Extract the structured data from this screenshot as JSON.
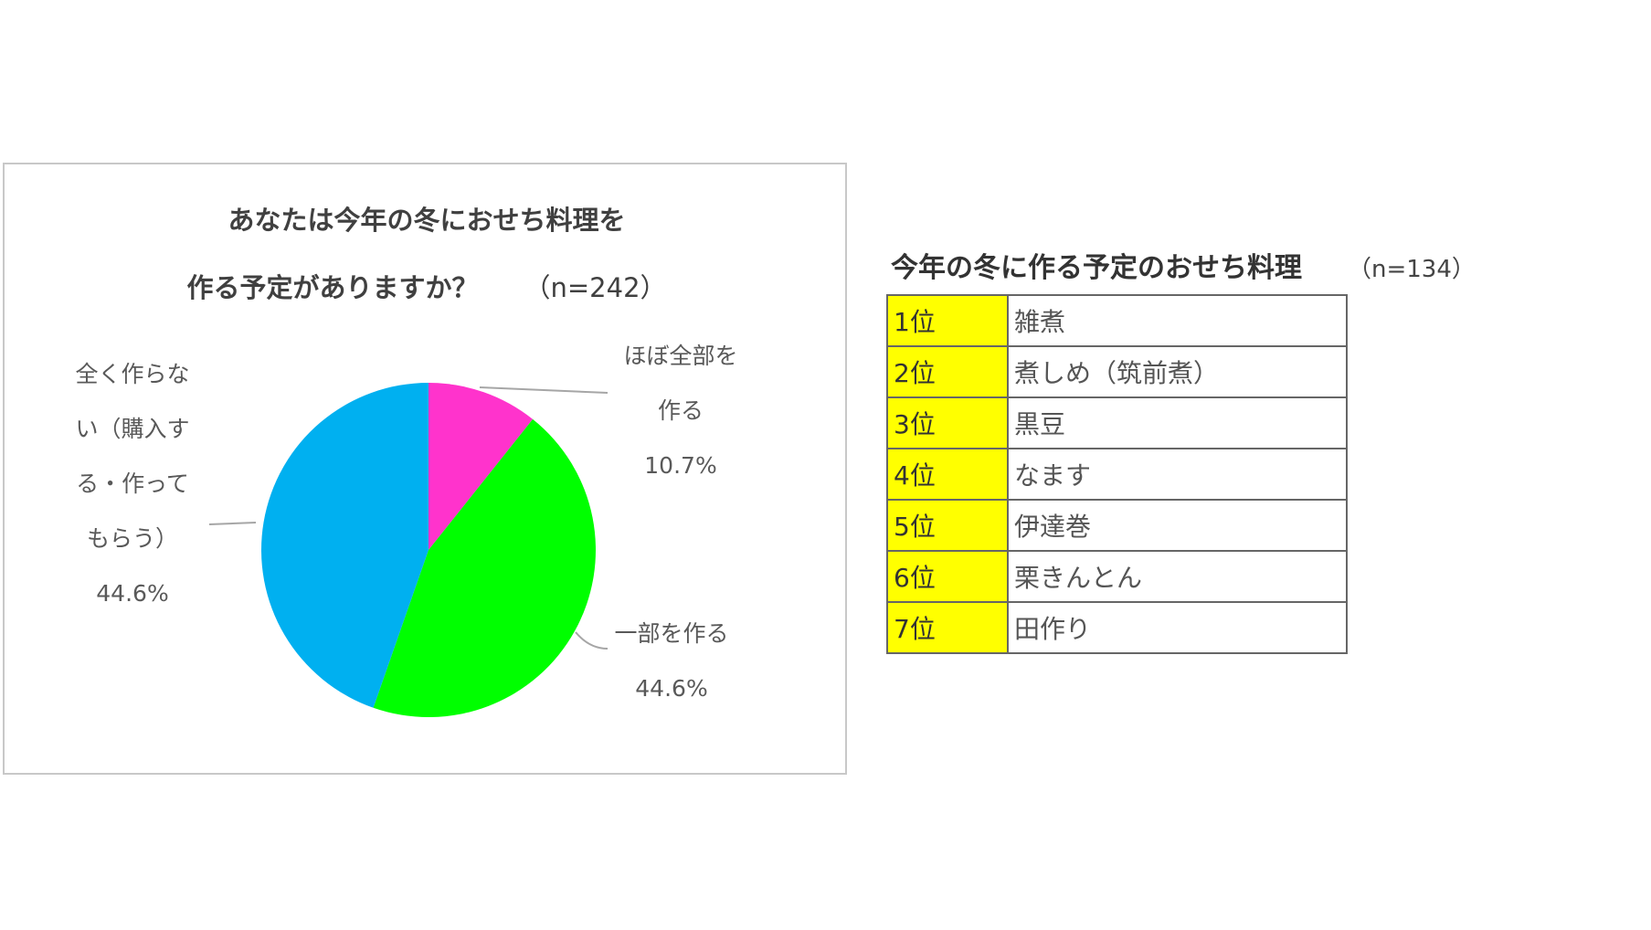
{
  "chart_data": {
    "type": "pie",
    "title_line1": "あなたは今年の冬におせち料理を",
    "title_line2": "作る予定がありますか？",
    "sample": "（n=242）",
    "slices": [
      {
        "label_lines": [
          "ほぼ全部を",
          "作る"
        ],
        "value": 10.7,
        "value_label": "10.7%",
        "color": "#ff33cc"
      },
      {
        "label_lines": [
          "一部を作る"
        ],
        "value": 44.6,
        "value_label": "44.6%",
        "color": "#00ff00"
      },
      {
        "label_lines": [
          "全く作らな",
          "い（購入す",
          "る・作って",
          "もらう）"
        ],
        "value": 44.6,
        "value_label": "44.6%",
        "color": "#00b0f0"
      }
    ],
    "start": "top",
    "direction": "clockwise"
  },
  "ranking": {
    "title": "今年の冬に作る予定のおせち料理",
    "sample": "（n=134）",
    "highlight_color": "#ffff00",
    "rows": [
      {
        "rank": "1位",
        "item": "雑煮"
      },
      {
        "rank": "2位",
        "item": "煮しめ（筑前煮）"
      },
      {
        "rank": "3位",
        "item": "黒豆"
      },
      {
        "rank": "4位",
        "item": "なます"
      },
      {
        "rank": "5位",
        "item": "伊達巻"
      },
      {
        "rank": "6位",
        "item": "栗きんとん"
      },
      {
        "rank": "7位",
        "item": "田作り"
      }
    ]
  }
}
